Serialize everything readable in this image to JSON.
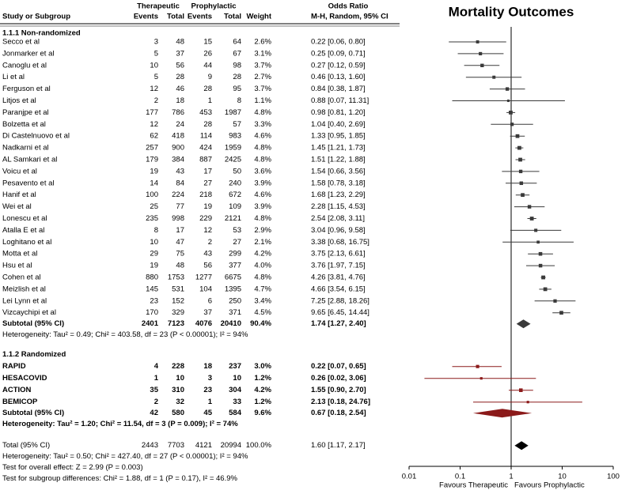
{
  "chart_data": {
    "type": "forest",
    "title": "Mortality Outcomes",
    "group_headers": [
      "Therapeutic",
      "Prophylactic",
      "Odds Ratio"
    ],
    "columns": [
      "Study or Subgroup",
      "Events",
      "Total",
      "Events",
      "Total",
      "Weight",
      "M-H, Random, 95% CI"
    ],
    "log_x": true,
    "xlim": [
      0.01,
      100
    ],
    "xticks": [
      0.01,
      0.1,
      1,
      10,
      100
    ],
    "ref_line": 1,
    "x_labels": [
      "Favours Therapeutic",
      "Favours Prophylactic"
    ],
    "subgroups": [
      {
        "name": "1.1.1 Non-randomized",
        "color": "#000000",
        "mark_color": "#3a3a3a",
        "bold": false,
        "studies": [
          {
            "name": "Secco et al",
            "e1": 3,
            "t1": 48,
            "e2": 15,
            "t2": 64,
            "weight": 2.6,
            "weight_label": "2.6%",
            "or": 0.22,
            "lo": 0.06,
            "hi": 0.8,
            "ci_label": "0.22 [0.06, 0.80]"
          },
          {
            "name": "Jonmarker et al",
            "e1": 5,
            "t1": 37,
            "e2": 26,
            "t2": 67,
            "weight": 3.1,
            "weight_label": "3.1%",
            "or": 0.25,
            "lo": 0.09,
            "hi": 0.71,
            "ci_label": "0.25 [0.09, 0.71]"
          },
          {
            "name": "Canoglu et al",
            "e1": 10,
            "t1": 56,
            "e2": 44,
            "t2": 98,
            "weight": 3.7,
            "weight_label": "3.7%",
            "or": 0.27,
            "lo": 0.12,
            "hi": 0.59,
            "ci_label": "0.27 [0.12, 0.59]"
          },
          {
            "name": "Li et al",
            "e1": 5,
            "t1": 28,
            "e2": 9,
            "t2": 28,
            "weight": 2.7,
            "weight_label": "2.7%",
            "or": 0.46,
            "lo": 0.13,
            "hi": 1.6,
            "ci_label": "0.46 [0.13, 1.60]"
          },
          {
            "name": "Ferguson et al",
            "e1": 12,
            "t1": 46,
            "e2": 28,
            "t2": 95,
            "weight": 3.7,
            "weight_label": "3.7%",
            "or": 0.84,
            "lo": 0.38,
            "hi": 1.87,
            "ci_label": "0.84 [0.38, 1.87]"
          },
          {
            "name": "Litjos et al",
            "e1": 2,
            "t1": 18,
            "e2": 1,
            "t2": 8,
            "weight": 1.1,
            "weight_label": "1.1%",
            "or": 0.88,
            "lo": 0.07,
            "hi": 11.31,
            "ci_label": "0.88 [0.07, 11.31]"
          },
          {
            "name": "Paranjpe et al",
            "e1": 177,
            "t1": 786,
            "e2": 453,
            "t2": 1987,
            "weight": 4.8,
            "weight_label": "4.8%",
            "or": 0.98,
            "lo": 0.81,
            "hi": 1.2,
            "ci_label": "0.98 [0.81, 1.20]"
          },
          {
            "name": "Bolzetta et al",
            "e1": 12,
            "t1": 24,
            "e2": 28,
            "t2": 57,
            "weight": 3.3,
            "weight_label": "3.3%",
            "or": 1.04,
            "lo": 0.4,
            "hi": 2.69,
            "ci_label": "1.04 [0.40, 2.69]"
          },
          {
            "name": "Di Castelnuovo et al",
            "e1": 62,
            "t1": 418,
            "e2": 114,
            "t2": 983,
            "weight": 4.6,
            "weight_label": "4.6%",
            "or": 1.33,
            "lo": 0.95,
            "hi": 1.85,
            "ci_label": "1.33 [0.95, 1.85]"
          },
          {
            "name": "Nadkarni et al",
            "e1": 257,
            "t1": 900,
            "e2": 424,
            "t2": 1959,
            "weight": 4.8,
            "weight_label": "4.8%",
            "or": 1.45,
            "lo": 1.21,
            "hi": 1.73,
            "ci_label": "1.45 [1.21, 1.73]"
          },
          {
            "name": "AL Samkari et al",
            "e1": 179,
            "t1": 384,
            "e2": 887,
            "t2": 2425,
            "weight": 4.8,
            "weight_label": "4.8%",
            "or": 1.51,
            "lo": 1.22,
            "hi": 1.88,
            "ci_label": "1.51 [1.22, 1.88]"
          },
          {
            "name": "Voicu et al",
            "e1": 19,
            "t1": 43,
            "e2": 17,
            "t2": 50,
            "weight": 3.6,
            "weight_label": "3.6%",
            "or": 1.54,
            "lo": 0.66,
            "hi": 3.56,
            "ci_label": "1.54 [0.66, 3.56]"
          },
          {
            "name": "Pesavento et al",
            "e1": 14,
            "t1": 84,
            "e2": 27,
            "t2": 240,
            "weight": 3.9,
            "weight_label": "3.9%",
            "or": 1.58,
            "lo": 0.78,
            "hi": 3.18,
            "ci_label": "1.58 [0.78, 3.18]"
          },
          {
            "name": "Hanif et al",
            "e1": 100,
            "t1": 224,
            "e2": 218,
            "t2": 672,
            "weight": 4.6,
            "weight_label": "4.6%",
            "or": 1.68,
            "lo": 1.23,
            "hi": 2.29,
            "ci_label": "1.68 [1.23, 2.29]"
          },
          {
            "name": "Wei et al",
            "e1": 25,
            "t1": 77,
            "e2": 19,
            "t2": 109,
            "weight": 3.9,
            "weight_label": "3.9%",
            "or": 2.28,
            "lo": 1.15,
            "hi": 4.53,
            "ci_label": "2.28 [1.15, 4.53]"
          },
          {
            "name": "Lonescu et al",
            "e1": 235,
            "t1": 998,
            "e2": 229,
            "t2": 2121,
            "weight": 4.8,
            "weight_label": "4.8%",
            "or": 2.54,
            "lo": 2.08,
            "hi": 3.11,
            "ci_label": "2.54 [2.08, 3.11]"
          },
          {
            "name": "Atalla E et al",
            "e1": 8,
            "t1": 17,
            "e2": 12,
            "t2": 53,
            "weight": 2.9,
            "weight_label": "2.9%",
            "or": 3.04,
            "lo": 0.96,
            "hi": 9.58,
            "ci_label": "3.04 [0.96, 9.58]"
          },
          {
            "name": "Loghitano et al",
            "e1": 10,
            "t1": 47,
            "e2": 2,
            "t2": 27,
            "weight": 2.1,
            "weight_label": "2.1%",
            "or": 3.38,
            "lo": 0.68,
            "hi": 16.75,
            "ci_label": "3.38 [0.68, 16.75]"
          },
          {
            "name": "Motta et al",
            "e1": 29,
            "t1": 75,
            "e2": 43,
            "t2": 299,
            "weight": 4.2,
            "weight_label": "4.2%",
            "or": 3.75,
            "lo": 2.13,
            "hi": 6.61,
            "ci_label": "3.75 [2.13, 6.61]"
          },
          {
            "name": "Hsu et al",
            "e1": 19,
            "t1": 48,
            "e2": 56,
            "t2": 377,
            "weight": 4.0,
            "weight_label": "4.0%",
            "or": 3.76,
            "lo": 1.97,
            "hi": 7.15,
            "ci_label": "3.76 [1.97, 7.15]"
          },
          {
            "name": "Cohen et al",
            "e1": 880,
            "t1": 1753,
            "e2": 1277,
            "t2": 6675,
            "weight": 4.8,
            "weight_label": "4.8%",
            "or": 4.26,
            "lo": 3.81,
            "hi": 4.76,
            "ci_label": "4.26 [3.81, 4.76]"
          },
          {
            "name": "Meizlish et al",
            "e1": 145,
            "t1": 531,
            "e2": 104,
            "t2": 1395,
            "weight": 4.7,
            "weight_label": "4.7%",
            "or": 4.66,
            "lo": 3.54,
            "hi": 6.15,
            "ci_label": "4.66 [3.54, 6.15]"
          },
          {
            "name": "Lei Lynn et al",
            "e1": 23,
            "t1": 152,
            "e2": 6,
            "t2": 250,
            "weight": 3.4,
            "weight_label": "3.4%",
            "or": 7.25,
            "lo": 2.88,
            "hi": 18.26,
            "ci_label": "7.25 [2.88, 18.26]"
          },
          {
            "name": "Vizcaychipi et al",
            "e1": 170,
            "t1": 329,
            "e2": 37,
            "t2": 371,
            "weight": 4.5,
            "weight_label": "4.5%",
            "or": 9.65,
            "lo": 6.45,
            "hi": 14.44,
            "ci_label": "9.65 [6.45, 14.44]"
          }
        ],
        "subtotal": {
          "name": "Subtotal (95% CI)",
          "e1": 2401,
          "t1": 7123,
          "e2": 4076,
          "t2": 20410,
          "weight": 90.4,
          "weight_label": "90.4%",
          "or": 1.74,
          "lo": 1.27,
          "hi": 2.4,
          "ci_label": "1.74 [1.27, 2.40]"
        },
        "heterogeneity": "Heterogeneity: Tau² = 0.49; Chi² = 403.58, df = 23 (P < 0.00001); I² = 94%"
      },
      {
        "name": "1.1.2 Randomized",
        "color": "#8b1a1a",
        "mark_color": "#8b1a1a",
        "bold": true,
        "studies": [
          {
            "name": "RAPID",
            "e1": 4,
            "t1": 228,
            "e2": 18,
            "t2": 237,
            "weight": 3.0,
            "weight_label": "3.0%",
            "or": 0.22,
            "lo": 0.07,
            "hi": 0.65,
            "ci_label": "0.22 [0.07, 0.65]"
          },
          {
            "name": "HESACOVID",
            "e1": 1,
            "t1": 10,
            "e2": 3,
            "t2": 10,
            "weight": 1.2,
            "weight_label": "1.2%",
            "or": 0.26,
            "lo": 0.02,
            "hi": 3.06,
            "ci_label": "0.26 [0.02, 3.06]"
          },
          {
            "name": "ACTION",
            "e1": 35,
            "t1": 310,
            "e2": 23,
            "t2": 304,
            "weight": 4.2,
            "weight_label": "4.2%",
            "or": 1.55,
            "lo": 0.9,
            "hi": 2.7,
            "ci_label": "1.55 [0.90, 2.70]"
          },
          {
            "name": "BEMICOP",
            "e1": 2,
            "t1": 32,
            "e2": 1,
            "t2": 33,
            "weight": 1.2,
            "weight_label": "1.2%",
            "or": 2.13,
            "lo": 0.18,
            "hi": 24.76,
            "ci_label": "2.13 [0.18, 24.76]"
          }
        ],
        "subtotal": {
          "name": "Subtotal (95% CI)",
          "e1": 42,
          "t1": 580,
          "e2": 45,
          "t2": 584,
          "weight": 9.6,
          "weight_label": "9.6%",
          "or": 0.67,
          "lo": 0.18,
          "hi": 2.54,
          "ci_label": "0.67 [0.18, 2.54]"
        },
        "heterogeneity": "Heterogeneity: Tau² = 1.20; Chi² = 11.54, df = 3 (P = 0.009); I² = 74%"
      }
    ],
    "total": {
      "name": "Total (95% CI)",
      "e1": 2443,
      "t1": 7703,
      "e2": 4121,
      "t2": 20994,
      "weight": 100.0,
      "weight_label": "100.0%",
      "or": 1.6,
      "lo": 1.17,
      "hi": 2.17,
      "ci_label": "1.60 [1.17, 2.17]",
      "color": "#000000",
      "mark_color": "#000000"
    },
    "footnotes": [
      "Heterogeneity: Tau² = 0.50; Chi² = 427.40, df = 27 (P < 0.00001); I² = 94%",
      "Test for overall effect: Z = 2.99 (P = 0.003)",
      "Test for subgroup differences: Chi² = 1.88, df = 1 (P = 0.17), I² = 46.9%"
    ]
  }
}
